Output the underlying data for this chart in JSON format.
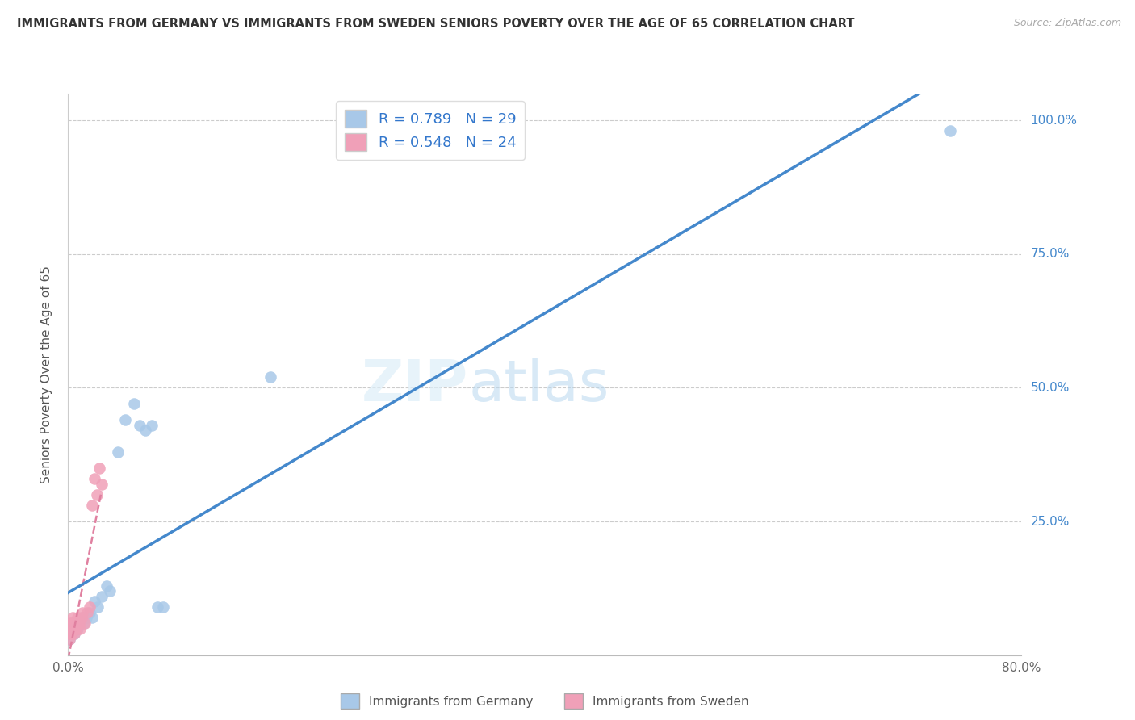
{
  "title": "IMMIGRANTS FROM GERMANY VS IMMIGRANTS FROM SWEDEN SENIORS POVERTY OVER THE AGE OF 65 CORRELATION CHART",
  "source": "Source: ZipAtlas.com",
  "ylabel": "Seniors Poverty Over the Age of 65",
  "xlim": [
    0.0,
    0.8
  ],
  "ylim": [
    0.0,
    1.05
  ],
  "background_color": "#ffffff",
  "grid_color": "#cccccc",
  "watermark_text": "ZIPatlas",
  "germany_color": "#a8c8e8",
  "sweden_color": "#f0a0b8",
  "germany_line_color": "#4488cc",
  "sweden_line_color": "#e080a0",
  "germany_R": "0.789",
  "germany_N": "29",
  "sweden_R": "0.548",
  "sweden_N": "24",
  "legend_label_germany": "Immigrants from Germany",
  "legend_label_sweden": "Immigrants from Sweden",
  "germany_scatter_x": [
    0.001,
    0.002,
    0.003,
    0.004,
    0.005,
    0.006,
    0.007,
    0.008,
    0.01,
    0.012,
    0.013,
    0.015,
    0.018,
    0.02,
    0.022,
    0.025,
    0.028,
    0.032,
    0.035,
    0.042,
    0.048,
    0.055,
    0.06,
    0.065,
    0.07,
    0.075,
    0.08,
    0.17,
    0.74
  ],
  "germany_scatter_y": [
    0.03,
    0.04,
    0.04,
    0.05,
    0.04,
    0.05,
    0.06,
    0.05,
    0.06,
    0.07,
    0.06,
    0.07,
    0.08,
    0.07,
    0.1,
    0.09,
    0.11,
    0.13,
    0.12,
    0.38,
    0.44,
    0.47,
    0.43,
    0.42,
    0.43,
    0.09,
    0.09,
    0.52,
    0.98
  ],
  "sweden_scatter_x": [
    0.001,
    0.001,
    0.002,
    0.002,
    0.003,
    0.003,
    0.004,
    0.004,
    0.005,
    0.006,
    0.007,
    0.008,
    0.009,
    0.01,
    0.011,
    0.012,
    0.014,
    0.016,
    0.018,
    0.02,
    0.022,
    0.024,
    0.026,
    0.028
  ],
  "sweden_scatter_y": [
    0.03,
    0.05,
    0.04,
    0.06,
    0.04,
    0.06,
    0.05,
    0.07,
    0.04,
    0.06,
    0.05,
    0.07,
    0.06,
    0.05,
    0.07,
    0.08,
    0.06,
    0.08,
    0.09,
    0.28,
    0.33,
    0.3,
    0.35,
    0.32
  ]
}
